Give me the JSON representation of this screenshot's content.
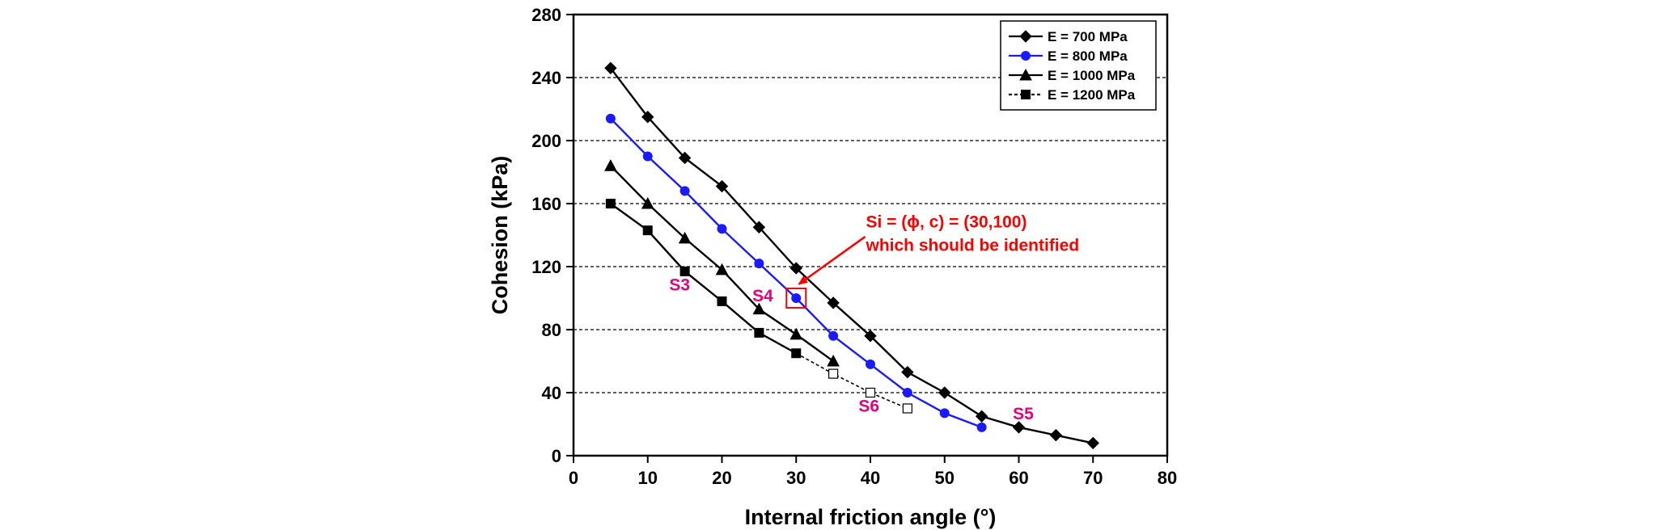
{
  "chart_data": {
    "type": "line",
    "xlabel": "Internal friction angle (°)",
    "ylabel": "Cohesion (kPa)",
    "xlim": [
      0,
      80
    ],
    "ylim": [
      0,
      280
    ],
    "xticks": [
      0,
      10,
      20,
      30,
      40,
      50,
      60,
      70,
      80
    ],
    "yticks": [
      0,
      40,
      80,
      120,
      160,
      200,
      240,
      280
    ],
    "grid": "horizontal-dashed",
    "legend_position": "top-right",
    "series": [
      {
        "name": "E = 700 MPa",
        "color": "#000000",
        "marker": "diamond",
        "points": [
          [
            5,
            246
          ],
          [
            10,
            215
          ],
          [
            15,
            189
          ],
          [
            20,
            171
          ],
          [
            25,
            145
          ],
          [
            30,
            119
          ],
          [
            35,
            97
          ],
          [
            40,
            76
          ],
          [
            45,
            53
          ],
          [
            50,
            40
          ],
          [
            55,
            25
          ],
          [
            60,
            18
          ],
          [
            65,
            13
          ],
          [
            70,
            8
          ]
        ]
      },
      {
        "name": "E = 800 MPa",
        "color": "#1a1aff",
        "marker": "circle",
        "points": [
          [
            5,
            214
          ],
          [
            10,
            190
          ],
          [
            15,
            168
          ],
          [
            20,
            144
          ],
          [
            25,
            122
          ],
          [
            30,
            100
          ],
          [
            35,
            76
          ],
          [
            40,
            58
          ],
          [
            45,
            40
          ],
          [
            50,
            27
          ],
          [
            55,
            18
          ]
        ]
      },
      {
        "name": "E = 1000 MPa",
        "color": "#000000",
        "marker": "triangle",
        "points": [
          [
            5,
            184
          ],
          [
            10,
            160
          ],
          [
            15,
            138
          ],
          [
            20,
            118
          ],
          [
            25,
            93
          ],
          [
            30,
            77
          ],
          [
            35,
            60
          ]
        ]
      },
      {
        "name": "E = 1200 MPa",
        "color": "#000000",
        "marker": "square",
        "points": [
          [
            5,
            160
          ],
          [
            10,
            143
          ],
          [
            15,
            117
          ],
          [
            20,
            98
          ],
          [
            25,
            78
          ],
          [
            30,
            65
          ]
        ],
        "extension_points": [
          [
            30,
            65
          ],
          [
            35,
            52
          ],
          [
            40,
            40
          ],
          [
            45,
            30
          ]
        ]
      }
    ],
    "annotations": {
      "point_labels": [
        {
          "text": "S3",
          "x": 14.3,
          "y": 105
        },
        {
          "text": "S4",
          "x": 25.5,
          "y": 98
        },
        {
          "text": "S5",
          "x": 60.6,
          "y": 23
        },
        {
          "text": "S6",
          "x": 39.8,
          "y": 28
        }
      ],
      "highlight": {
        "x": 30,
        "y": 100
      },
      "note_lines": [
        "Si = (ϕ, c) = (30,100)",
        "which should be identified"
      ],
      "note_anchor": {
        "x": 39.4,
        "y": 145
      },
      "arrow_from": {
        "x": 39.3,
        "y": 139
      },
      "arrow_to": {
        "x": 30.4,
        "y": 109
      }
    }
  }
}
